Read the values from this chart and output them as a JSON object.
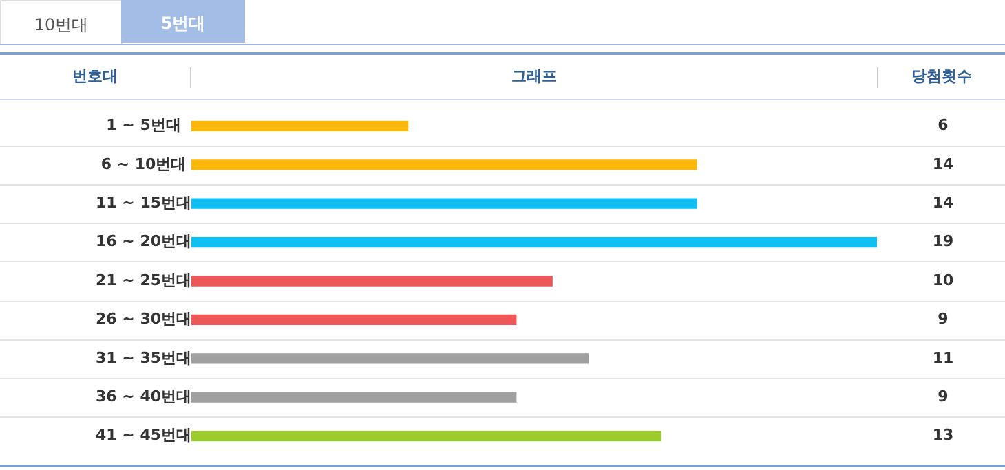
{
  "chart_data": {
    "type": "bar",
    "orientation": "horizontal",
    "annotations": [
      "10번대",
      "5번대"
    ],
    "ylabel": "번호대",
    "xlabel": "그래프",
    "y2label": "당첨횟수",
    "categories": [
      "1 ~ 5번대",
      "6 ~ 10번대",
      "11 ~ 15번대",
      "16 ~ 20번대",
      "21 ~ 25번대",
      "26 ~ 30번대",
      "31 ~ 35번대",
      "36 ~ 40번대",
      "41 ~ 45번대"
    ],
    "values": [
      6,
      14,
      14,
      19,
      10,
      9,
      11,
      9,
      13
    ],
    "colors": [
      "#fbb70a",
      "#fbb70a",
      "#12bff2",
      "#12bff2",
      "#ed5757",
      "#ed5757",
      "#a0a0a0",
      "#a0a0a0",
      "#9bcc2c"
    ],
    "xlim": [
      0,
      19
    ],
    "tick_labels": "y",
    "data_labels": true,
    "grid": "y"
  }
}
